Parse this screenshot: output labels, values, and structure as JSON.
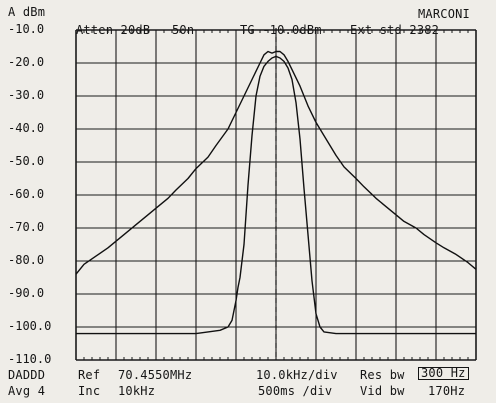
{
  "header": {
    "ref_unit": "A dBm",
    "brand": "MARCONI",
    "atten": "Atten 20dB",
    "atten_suffix": "50n",
    "tg": "TG -10.0dBm",
    "ext": "Ext std 2382"
  },
  "y_axis": {
    "tick_labels": [
      "-10.0",
      "-20.0",
      "-30.0",
      "-40.0",
      "-50.0",
      "-60.0",
      "-70.0",
      "-80.0",
      "-90.0",
      "-100.0",
      "-110.0"
    ]
  },
  "footer": {
    "markers": "DADDD",
    "avg": "Avg 4",
    "ref_label": "Ref",
    "ref_value": "70.4550MHz",
    "inc_label": "Inc",
    "inc_value": "10kHz",
    "span_per_div": "10.0kHz/div",
    "sweep": "500ms /div",
    "res_bw_label": "Res bw",
    "res_bw_value": "300 Hz",
    "vid_bw_label": "Vid bw",
    "vid_bw_value": "170Hz"
  },
  "chart_data": {
    "type": "line",
    "ylim": [
      -110,
      -10
    ],
    "y_unit": "dBm",
    "x_unit": "kHz offset from center",
    "xlim": [
      -50,
      50
    ],
    "grid": true,
    "center_marker": true,
    "series": [
      {
        "x": [
          -50,
          -48,
          -45,
          -42,
          -40,
          -37,
          -35,
          -32,
          -30,
          -27,
          -25,
          -22,
          -20,
          -17,
          -15,
          -12,
          -10,
          -8,
          -6,
          -4,
          -3,
          -2,
          -1,
          0,
          1,
          2,
          3,
          4,
          6,
          8,
          10,
          12,
          15,
          17,
          20,
          22,
          25,
          27,
          30,
          32,
          35,
          37,
          40,
          42,
          45,
          48,
          50
        ],
        "values": [
          -84,
          -81,
          -78.5,
          -76,
          -74,
          -71,
          -69,
          -66,
          -64,
          -61,
          -58.5,
          -55,
          -52,
          -48.5,
          -45,
          -40,
          -35,
          -30,
          -25,
          -20,
          -17.5,
          -16.5,
          -17,
          -16.5,
          -16.5,
          -17.5,
          -19.5,
          -22,
          -27,
          -33,
          -38,
          -42,
          -48,
          -51.5,
          -55,
          -57.5,
          -61,
          -63,
          -66,
          -68,
          -70,
          -72,
          -74.5,
          -76,
          -78,
          -80.5,
          -82.5
        ]
      },
      {
        "x": [
          -50,
          -40,
          -30,
          -20,
          -14,
          -12,
          -11,
          -10,
          -9.5,
          -9,
          -8,
          -7,
          -6,
          -5,
          -4,
          -3,
          -2,
          -1,
          0,
          1,
          2,
          3,
          4,
          5,
          6,
          7,
          8,
          9,
          10,
          11,
          12,
          15,
          20,
          30,
          40,
          50
        ],
        "values": [
          -102,
          -102,
          -102,
          -102,
          -101,
          -100,
          -98,
          -92,
          -88,
          -85,
          -75,
          -57,
          -42,
          -30,
          -24,
          -21,
          -19.5,
          -18.5,
          -18,
          -18.5,
          -19.5,
          -21.5,
          -25,
          -32,
          -43,
          -58,
          -72,
          -86,
          -96,
          -100,
          -101.5,
          -102,
          -102,
          -102,
          -102,
          -102
        ]
      }
    ]
  }
}
